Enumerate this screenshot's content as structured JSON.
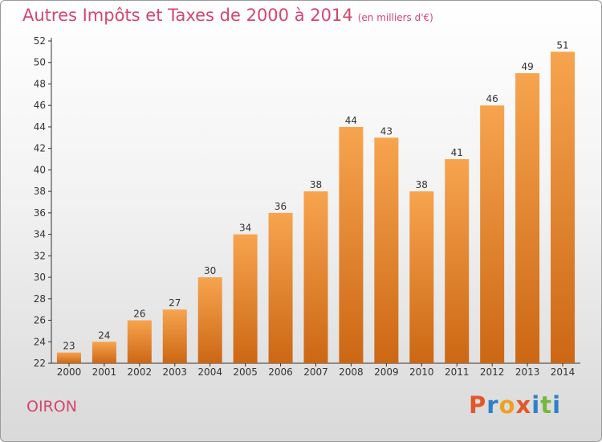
{
  "chart_data": {
    "type": "bar",
    "title": "Autres Impôts et Taxes de 2000 à 2014",
    "title_unit": "(en milliers d'€)",
    "categories": [
      "2000",
      "2001",
      "2002",
      "2003",
      "2004",
      "2005",
      "2006",
      "2007",
      "2008",
      "2009",
      "2010",
      "2011",
      "2012",
      "2013",
      "2014"
    ],
    "values": [
      23,
      24,
      26,
      27,
      30,
      34,
      36,
      38,
      44,
      43,
      38,
      41,
      46,
      49,
      51
    ],
    "ylim": [
      22,
      52
    ],
    "yticks": [
      22,
      24,
      26,
      28,
      30,
      32,
      34,
      36,
      38,
      40,
      42,
      44,
      46,
      48,
      50,
      52
    ],
    "xlabel": "",
    "ylabel": "",
    "grid": false,
    "bar_color_top": "#f7a44f",
    "bar_color_bottom": "#cc6714"
  },
  "location": "OIRON",
  "brand": {
    "name": "Proxiti",
    "letters": [
      "P",
      "r",
      "o",
      "x",
      "i",
      "t",
      "i"
    ],
    "letter_colors": [
      "#e0582b",
      "#2f80c8",
      "#f0a020",
      "#e0582b",
      "#2f80c8",
      "#74b83e",
      "#2f80c8"
    ]
  }
}
